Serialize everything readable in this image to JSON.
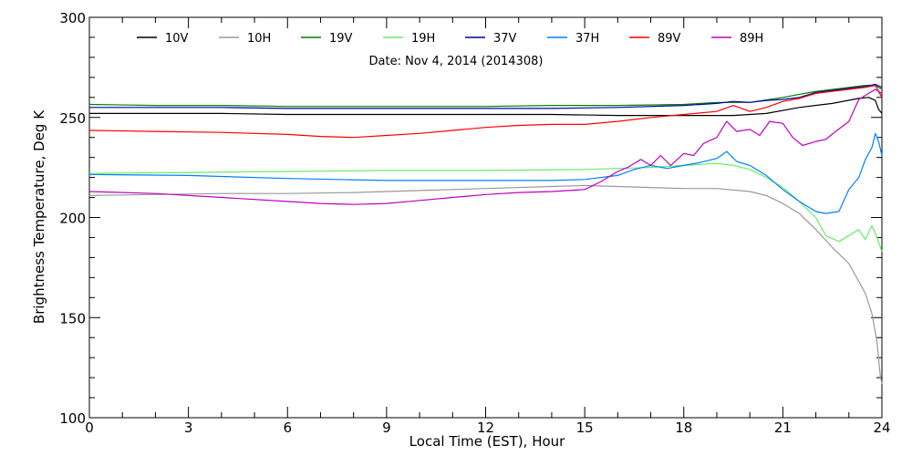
{
  "chart_data": {
    "type": "line",
    "title": "Date: Nov  4, 2014 (2014308)",
    "xlabel": "Local Time (EST), Hour",
    "ylabel": "Brightness Temperature, Deg K",
    "xlim": [
      0,
      24
    ],
    "ylim": [
      100,
      300
    ],
    "xticks": [
      0,
      3,
      6,
      9,
      12,
      15,
      18,
      21,
      24
    ],
    "yticks": [
      100,
      150,
      200,
      250,
      300
    ],
    "grid": false,
    "legend_position": "top",
    "series": [
      {
        "name": "10V",
        "color": "#000000",
        "points": [
          [
            0,
            252
          ],
          [
            2,
            252
          ],
          [
            4,
            252
          ],
          [
            6,
            251.5
          ],
          [
            8,
            251.5
          ],
          [
            10,
            251.5
          ],
          [
            12,
            251.5
          ],
          [
            14,
            251.5
          ],
          [
            16,
            251
          ],
          [
            18,
            251
          ],
          [
            19.5,
            251
          ],
          [
            20.5,
            252
          ],
          [
            21.5,
            255
          ],
          [
            22.5,
            257
          ],
          [
            23.3,
            259.5
          ],
          [
            23.6,
            260
          ],
          [
            23.8,
            258.5
          ],
          [
            23.9,
            254
          ],
          [
            24,
            252
          ]
        ]
      },
      {
        "name": "10H",
        "color": "#999999",
        "points": [
          [
            0,
            211
          ],
          [
            2,
            211.5
          ],
          [
            4,
            212
          ],
          [
            6,
            212
          ],
          [
            8,
            212.5
          ],
          [
            10,
            213.5
          ],
          [
            12,
            214.5
          ],
          [
            14,
            215.5
          ],
          [
            15,
            216
          ],
          [
            16,
            215.5
          ],
          [
            17,
            215
          ],
          [
            18,
            214.5
          ],
          [
            19,
            214.5
          ],
          [
            20,
            213
          ],
          [
            20.5,
            211
          ],
          [
            21,
            207
          ],
          [
            21.5,
            202
          ],
          [
            22,
            194
          ],
          [
            22.5,
            185
          ],
          [
            23,
            177
          ],
          [
            23.3,
            168
          ],
          [
            23.5,
            162
          ],
          [
            23.7,
            152
          ],
          [
            23.85,
            138
          ],
          [
            23.95,
            121
          ],
          [
            24,
            117
          ]
        ]
      },
      {
        "name": "19V",
        "color": "#008000",
        "points": [
          [
            0,
            256.5
          ],
          [
            2,
            256
          ],
          [
            4,
            256
          ],
          [
            6,
            255.5
          ],
          [
            8,
            255.5
          ],
          [
            10,
            255.5
          ],
          [
            12,
            255.5
          ],
          [
            14,
            256
          ],
          [
            16,
            256
          ],
          [
            18,
            256.5
          ],
          [
            19,
            257.5
          ],
          [
            20,
            257.5
          ],
          [
            21,
            260
          ],
          [
            22,
            263
          ],
          [
            23,
            265
          ],
          [
            23.5,
            266
          ],
          [
            23.8,
            266
          ],
          [
            24,
            264
          ]
        ]
      },
      {
        "name": "19H",
        "color": "#66ee66",
        "points": [
          [
            0,
            222
          ],
          [
            3,
            222.5
          ],
          [
            6,
            223
          ],
          [
            9,
            223.5
          ],
          [
            12,
            223.5
          ],
          [
            15,
            224
          ],
          [
            16,
            224.5
          ],
          [
            17,
            225
          ],
          [
            18,
            226
          ],
          [
            19,
            227
          ],
          [
            19.5,
            226
          ],
          [
            20,
            224
          ],
          [
            20.5,
            220
          ],
          [
            21,
            215
          ],
          [
            21.5,
            208
          ],
          [
            22,
            200
          ],
          [
            22.3,
            191
          ],
          [
            22.7,
            188
          ],
          [
            23,
            191
          ],
          [
            23.3,
            194
          ],
          [
            23.5,
            189
          ],
          [
            23.7,
            196
          ],
          [
            23.85,
            190
          ],
          [
            24,
            183
          ]
        ]
      },
      {
        "name": "37V",
        "color": "#0000a0",
        "points": [
          [
            0,
            255
          ],
          [
            2,
            255
          ],
          [
            4,
            255
          ],
          [
            6,
            254.5
          ],
          [
            8,
            254.5
          ],
          [
            10,
            254.5
          ],
          [
            12,
            254.5
          ],
          [
            14,
            254.5
          ],
          [
            16,
            255
          ],
          [
            18,
            256
          ],
          [
            19,
            257
          ],
          [
            19.5,
            258
          ],
          [
            20,
            257.5
          ],
          [
            20.5,
            258.5
          ],
          [
            21,
            259
          ],
          [
            21.5,
            260
          ],
          [
            22,
            262.5
          ],
          [
            22.5,
            263.5
          ],
          [
            23,
            264.5
          ],
          [
            23.5,
            265.5
          ],
          [
            23.8,
            266.5
          ],
          [
            24,
            265
          ]
        ]
      },
      {
        "name": "37H",
        "color": "#0080ff",
        "points": [
          [
            0,
            221.5
          ],
          [
            3,
            221
          ],
          [
            6,
            219.5
          ],
          [
            9,
            218.5
          ],
          [
            12,
            218.5
          ],
          [
            14,
            218.5
          ],
          [
            15,
            219
          ],
          [
            16,
            221
          ],
          [
            16.5,
            224
          ],
          [
            17,
            226
          ],
          [
            17.5,
            224.5
          ],
          [
            18,
            226
          ],
          [
            18.5,
            227.5
          ],
          [
            19,
            229.5
          ],
          [
            19.3,
            233
          ],
          [
            19.6,
            228
          ],
          [
            20,
            226
          ],
          [
            20.5,
            221
          ],
          [
            21,
            214
          ],
          [
            21.5,
            208
          ],
          [
            22,
            203
          ],
          [
            22.3,
            202
          ],
          [
            22.7,
            203
          ],
          [
            23,
            214
          ],
          [
            23.3,
            220
          ],
          [
            23.5,
            229
          ],
          [
            23.7,
            235
          ],
          [
            23.8,
            242
          ],
          [
            23.9,
            238
          ],
          [
            24,
            231
          ]
        ]
      },
      {
        "name": "89V",
        "color": "#ff0000",
        "points": [
          [
            0,
            243.5
          ],
          [
            2,
            243
          ],
          [
            4,
            242.5
          ],
          [
            6,
            241.5
          ],
          [
            7,
            240.5
          ],
          [
            8,
            240
          ],
          [
            9,
            241
          ],
          [
            10,
            242
          ],
          [
            11,
            243.5
          ],
          [
            12,
            245
          ],
          [
            13,
            246
          ],
          [
            14,
            246.5
          ],
          [
            15,
            246.5
          ],
          [
            16,
            248
          ],
          [
            17,
            250
          ],
          [
            18,
            251.5
          ],
          [
            19,
            253
          ],
          [
            19.5,
            256
          ],
          [
            20,
            253
          ],
          [
            20.5,
            255
          ],
          [
            21,
            258
          ],
          [
            21.5,
            259.5
          ],
          [
            22,
            262
          ],
          [
            22.5,
            263
          ],
          [
            23,
            264
          ],
          [
            23.5,
            265
          ],
          [
            23.8,
            266
          ],
          [
            24,
            260
          ]
        ]
      },
      {
        "name": "89H",
        "color": "#c000c0",
        "points": [
          [
            0,
            213
          ],
          [
            2,
            212
          ],
          [
            4,
            210
          ],
          [
            6,
            208
          ],
          [
            7,
            207
          ],
          [
            8,
            206.5
          ],
          [
            9,
            207
          ],
          [
            10,
            208.5
          ],
          [
            11,
            210
          ],
          [
            12,
            211.5
          ],
          [
            13,
            212.5
          ],
          [
            14,
            213
          ],
          [
            15,
            214
          ],
          [
            15.5,
            218
          ],
          [
            16,
            223
          ],
          [
            16.3,
            225
          ],
          [
            16.7,
            229
          ],
          [
            17,
            226
          ],
          [
            17.3,
            231
          ],
          [
            17.6,
            226
          ],
          [
            18,
            232
          ],
          [
            18.3,
            231
          ],
          [
            18.6,
            237
          ],
          [
            19,
            240
          ],
          [
            19.3,
            248
          ],
          [
            19.6,
            243
          ],
          [
            20,
            244
          ],
          [
            20.3,
            241
          ],
          [
            20.6,
            248
          ],
          [
            21,
            247
          ],
          [
            21.3,
            240
          ],
          [
            21.6,
            236
          ],
          [
            22,
            238
          ],
          [
            22.3,
            239
          ],
          [
            22.6,
            243
          ],
          [
            23,
            248
          ],
          [
            23.3,
            259
          ],
          [
            23.6,
            262
          ],
          [
            23.8,
            264
          ],
          [
            24,
            262
          ]
        ]
      }
    ]
  }
}
